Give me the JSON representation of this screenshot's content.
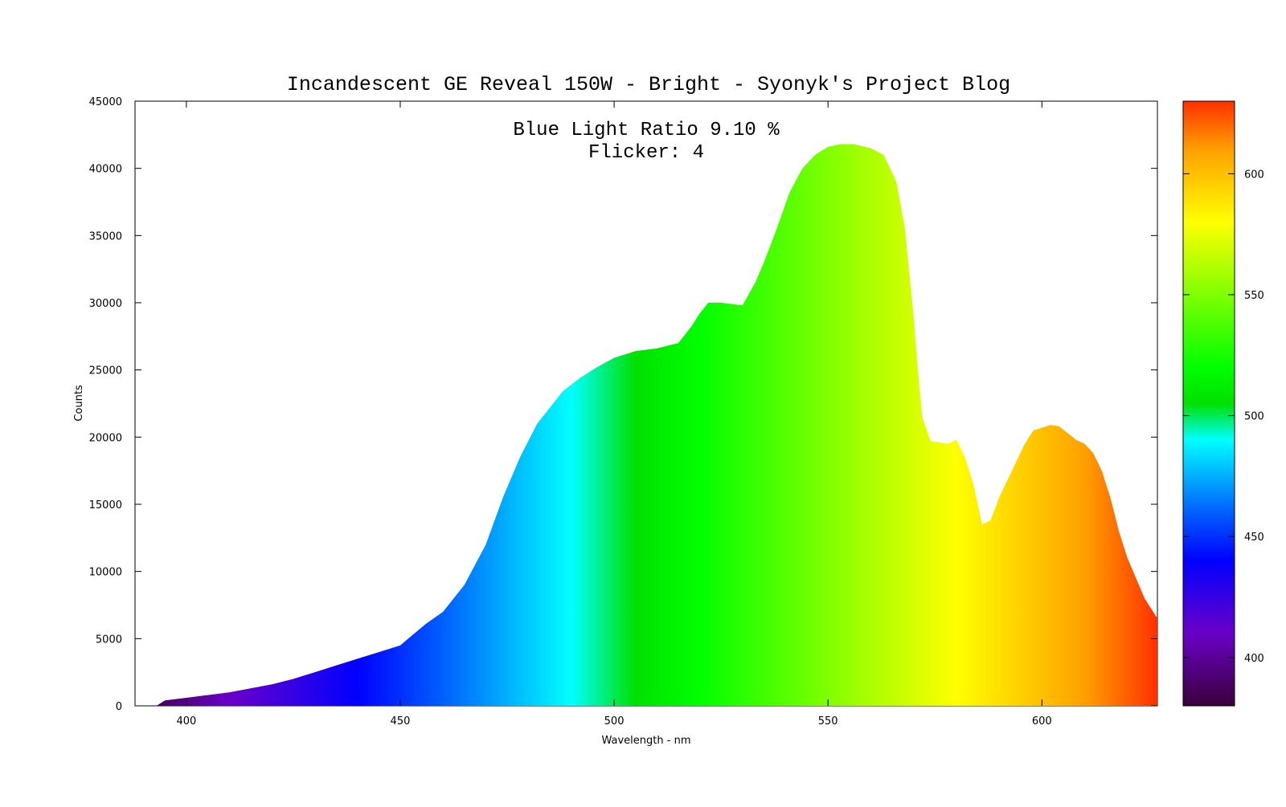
{
  "chart_data": {
    "type": "area",
    "title": "Incandescent GE Reveal 150W - Bright - Syonyk's Project Blog",
    "annotations": [
      "Blue Light Ratio 9.10 %",
      "Flicker: 4"
    ],
    "xlabel": "Wavelength - nm",
    "ylabel": "Counts",
    "xlim": [
      388,
      627
    ],
    "ylim": [
      0,
      45000
    ],
    "x_ticks": [
      400,
      450,
      500,
      550,
      600
    ],
    "y_ticks": [
      0,
      5000,
      10000,
      15000,
      20000,
      25000,
      30000,
      35000,
      40000,
      45000
    ],
    "colorbar": {
      "range": [
        380,
        630
      ],
      "ticks": [
        400,
        450,
        500,
        550,
        600
      ],
      "colors": [
        "#3a003a",
        "#6a00c8",
        "#0000ff",
        "#0060ff",
        "#00ffff",
        "#00e000",
        "#00ff00",
        "#ffff00",
        "#ffa000",
        "#ff3000"
      ],
      "stops": [
        380,
        410,
        440,
        460,
        490,
        505,
        520,
        580,
        610,
        630
      ]
    },
    "grid": false,
    "fill_by_wavelength": true,
    "series": [
      {
        "x": [
          393,
          395,
          400,
          405,
          410,
          415,
          420,
          425,
          430,
          435,
          440,
          445,
          450,
          453,
          456,
          460,
          465,
          470,
          474,
          478,
          482,
          485,
          488,
          492,
          496,
          500,
          505,
          510,
          515,
          518,
          520,
          522,
          525,
          530,
          533,
          535,
          538,
          541,
          544,
          547,
          550,
          553,
          556,
          560,
          563,
          566,
          568,
          570,
          571,
          572,
          574,
          576,
          578,
          580,
          582,
          584,
          586,
          588,
          590,
          593,
          596,
          598,
          600,
          602,
          604,
          606,
          608,
          610,
          612,
          614,
          616,
          618,
          620,
          622,
          624,
          626,
          627
        ],
        "y": [
          0,
          400,
          600,
          800,
          1000,
          1300,
          1600,
          2000,
          2500,
          3000,
          3500,
          4000,
          4500,
          5300,
          6100,
          7000,
          9000,
          12000,
          15500,
          18500,
          21000,
          22200,
          23400,
          24400,
          25200,
          25900,
          26400,
          26600,
          27000,
          28200,
          29200,
          30000,
          30000,
          29800,
          31500,
          33000,
          35500,
          38200,
          40000,
          41000,
          41600,
          41800,
          41800,
          41500,
          41000,
          39000,
          35500,
          29000,
          25000,
          21500,
          19700,
          19600,
          19500,
          19800,
          18500,
          16500,
          13500,
          13800,
          15500,
          17500,
          19500,
          20500,
          20700,
          20900,
          20800,
          20300,
          19800,
          19500,
          18800,
          17500,
          15500,
          13000,
          11000,
          9500,
          8000,
          7000,
          6500
        ]
      }
    ]
  }
}
